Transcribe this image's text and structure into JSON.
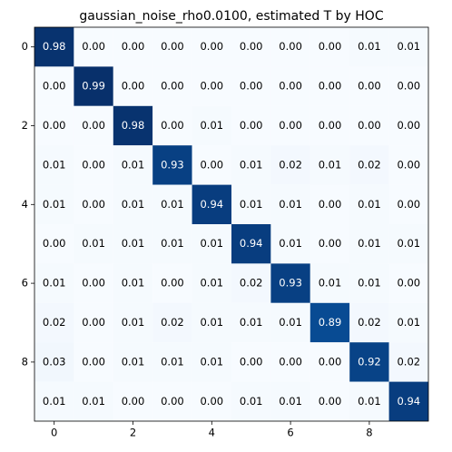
{
  "chart_data": {
    "type": "heatmap",
    "title": "gaussian_noise_rho0.0100, estimated T by HOC",
    "colormap": "Blues",
    "xlim": [
      -0.5,
      9.5
    ],
    "ylim": [
      9.5,
      -0.5
    ],
    "xticks": [
      0,
      2,
      4,
      6,
      8
    ],
    "yticks": [
      0,
      2,
      4,
      6,
      8
    ],
    "values": [
      [
        0.98,
        0,
        0,
        0,
        0,
        0,
        0,
        0,
        0.01,
        0.01
      ],
      [
        0,
        0.99,
        0,
        0,
        0,
        0,
        0,
        0,
        0,
        0
      ],
      [
        0,
        0,
        0.98,
        0,
        0.01,
        0,
        0,
        0,
        0,
        0
      ],
      [
        0.01,
        0,
        0.01,
        0.93,
        0,
        0.01,
        0.02,
        0.01,
        0.02,
        0
      ],
      [
        0.01,
        0,
        0.01,
        0.01,
        0.94,
        0.01,
        0.01,
        0,
        0.01,
        0
      ],
      [
        0,
        0.01,
        0.01,
        0.01,
        0.01,
        0.94,
        0.01,
        0,
        0.01,
        0.01
      ],
      [
        0.01,
        0,
        0.01,
        0,
        0.01,
        0.02,
        0.93,
        0.01,
        0.01,
        0
      ],
      [
        0.02,
        0,
        0.01,
        0.02,
        0.01,
        0.01,
        0.01,
        0.89,
        0.02,
        0.01
      ],
      [
        0.03,
        0,
        0.01,
        0.01,
        0.01,
        0,
        0,
        0,
        0.92,
        0.02
      ],
      [
        0.01,
        0.01,
        0,
        0,
        0,
        0.01,
        0.01,
        0,
        0.01,
        0.94
      ]
    ],
    "value_labels": [
      [
        "0.98",
        "0.00",
        "0.00",
        "0.00",
        "0.00",
        "0.00",
        "0.00",
        "0.00",
        "0.01",
        "0.01"
      ],
      [
        "0.00",
        "0.99",
        "0.00",
        "0.00",
        "0.00",
        "0.00",
        "0.00",
        "0.00",
        "0.00",
        "0.00"
      ],
      [
        "0.00",
        "0.00",
        "0.98",
        "0.00",
        "0.01",
        "0.00",
        "0.00",
        "0.00",
        "0.00",
        "0.00"
      ],
      [
        "0.01",
        "0.00",
        "0.01",
        "0.93",
        "0.00",
        "0.01",
        "0.02",
        "0.01",
        "0.02",
        "0.00"
      ],
      [
        "0.01",
        "0.00",
        "0.01",
        "0.01",
        "0.94",
        "0.01",
        "0.01",
        "0.00",
        "0.01",
        "0.00"
      ],
      [
        "0.00",
        "0.01",
        "0.01",
        "0.01",
        "0.01",
        "0.94",
        "0.01",
        "0.00",
        "0.01",
        "0.01"
      ],
      [
        "0.01",
        "0.00",
        "0.01",
        "0.00",
        "0.01",
        "0.02",
        "0.93",
        "0.01",
        "0.01",
        "0.00"
      ],
      [
        "0.02",
        "0.00",
        "0.01",
        "0.02",
        "0.01",
        "0.01",
        "0.01",
        "0.89",
        "0.02",
        "0.01"
      ],
      [
        "0.03",
        "0.00",
        "0.01",
        "0.01",
        "0.01",
        "0.00",
        "0.00",
        "0.00",
        "0.92",
        "0.02"
      ],
      [
        "0.01",
        "0.01",
        "0.00",
        "0.00",
        "0.00",
        "0.01",
        "0.01",
        "0.00",
        "0.01",
        "0.94"
      ]
    ]
  }
}
